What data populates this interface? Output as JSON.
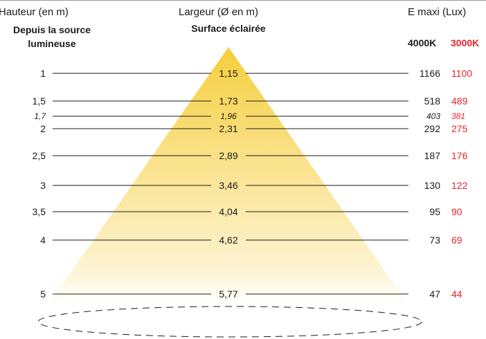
{
  "headers": {
    "height": "Hauteur (en m)",
    "height_sub": "Depuis la source lumineuse",
    "width": "Largeur (Ø en m)",
    "width_sub": "Surface éclairée",
    "lux": "E maxi (Lux)",
    "k4000": "4000K",
    "k3000": "3000K"
  },
  "colors": {
    "beam": "#f7d54a",
    "accent_3000k": "#e8242a",
    "line": "#1a1a1a"
  },
  "rows": [
    {
      "height": "1",
      "width": "1,15",
      "lux_4000": "1166",
      "lux_3000": "1100",
      "italic": false
    },
    {
      "height": "1,5",
      "width": "1,73",
      "lux_4000": "518",
      "lux_3000": "489",
      "italic": false
    },
    {
      "height": "1,7",
      "width": "1,96",
      "lux_4000": "403",
      "lux_3000": "381",
      "italic": true
    },
    {
      "height": "2",
      "width": "2,31",
      "lux_4000": "292",
      "lux_3000": "275",
      "italic": false
    },
    {
      "height": "2,5",
      "width": "2,89",
      "lux_4000": "187",
      "lux_3000": "176",
      "italic": false
    },
    {
      "height": "3",
      "width": "3,46",
      "lux_4000": "130",
      "lux_3000": "122",
      "italic": false
    },
    {
      "height": "3,5",
      "width": "4,04",
      "lux_4000": "95",
      "lux_3000": "90",
      "italic": false
    },
    {
      "height": "4",
      "width": "4,62",
      "lux_4000": "73",
      "lux_3000": "69",
      "italic": false
    },
    {
      "height": "5",
      "width": "5,77",
      "lux_4000": "47",
      "lux_3000": "44",
      "italic": false
    }
  ]
}
